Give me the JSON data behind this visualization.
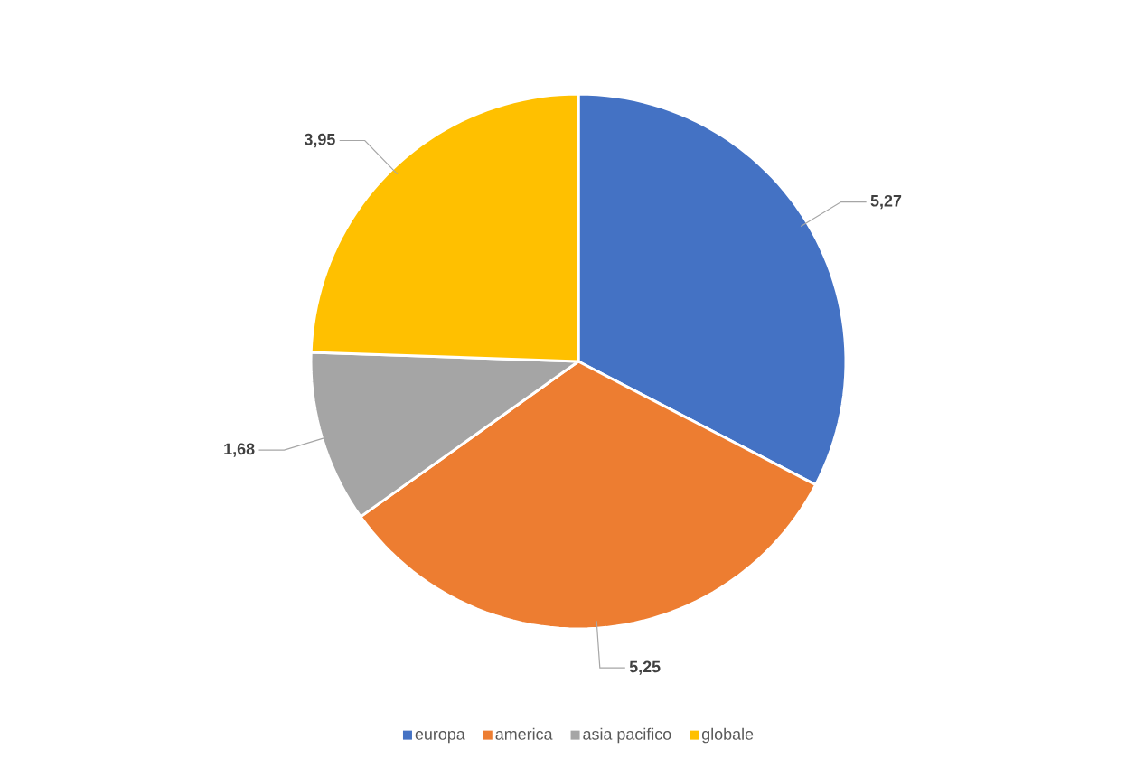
{
  "chart_data": {
    "type": "pie",
    "categories": [
      "europa",
      "america",
      "asia pacifico",
      "globale"
    ],
    "values": [
      5.27,
      5.25,
      1.68,
      3.95
    ],
    "value_labels": [
      "5,27",
      "5,25",
      "1,68",
      "3,95"
    ],
    "colors": [
      "#4472c4",
      "#ed7d31",
      "#a5a5a5",
      "#ffc000"
    ],
    "legend": "bottom"
  }
}
